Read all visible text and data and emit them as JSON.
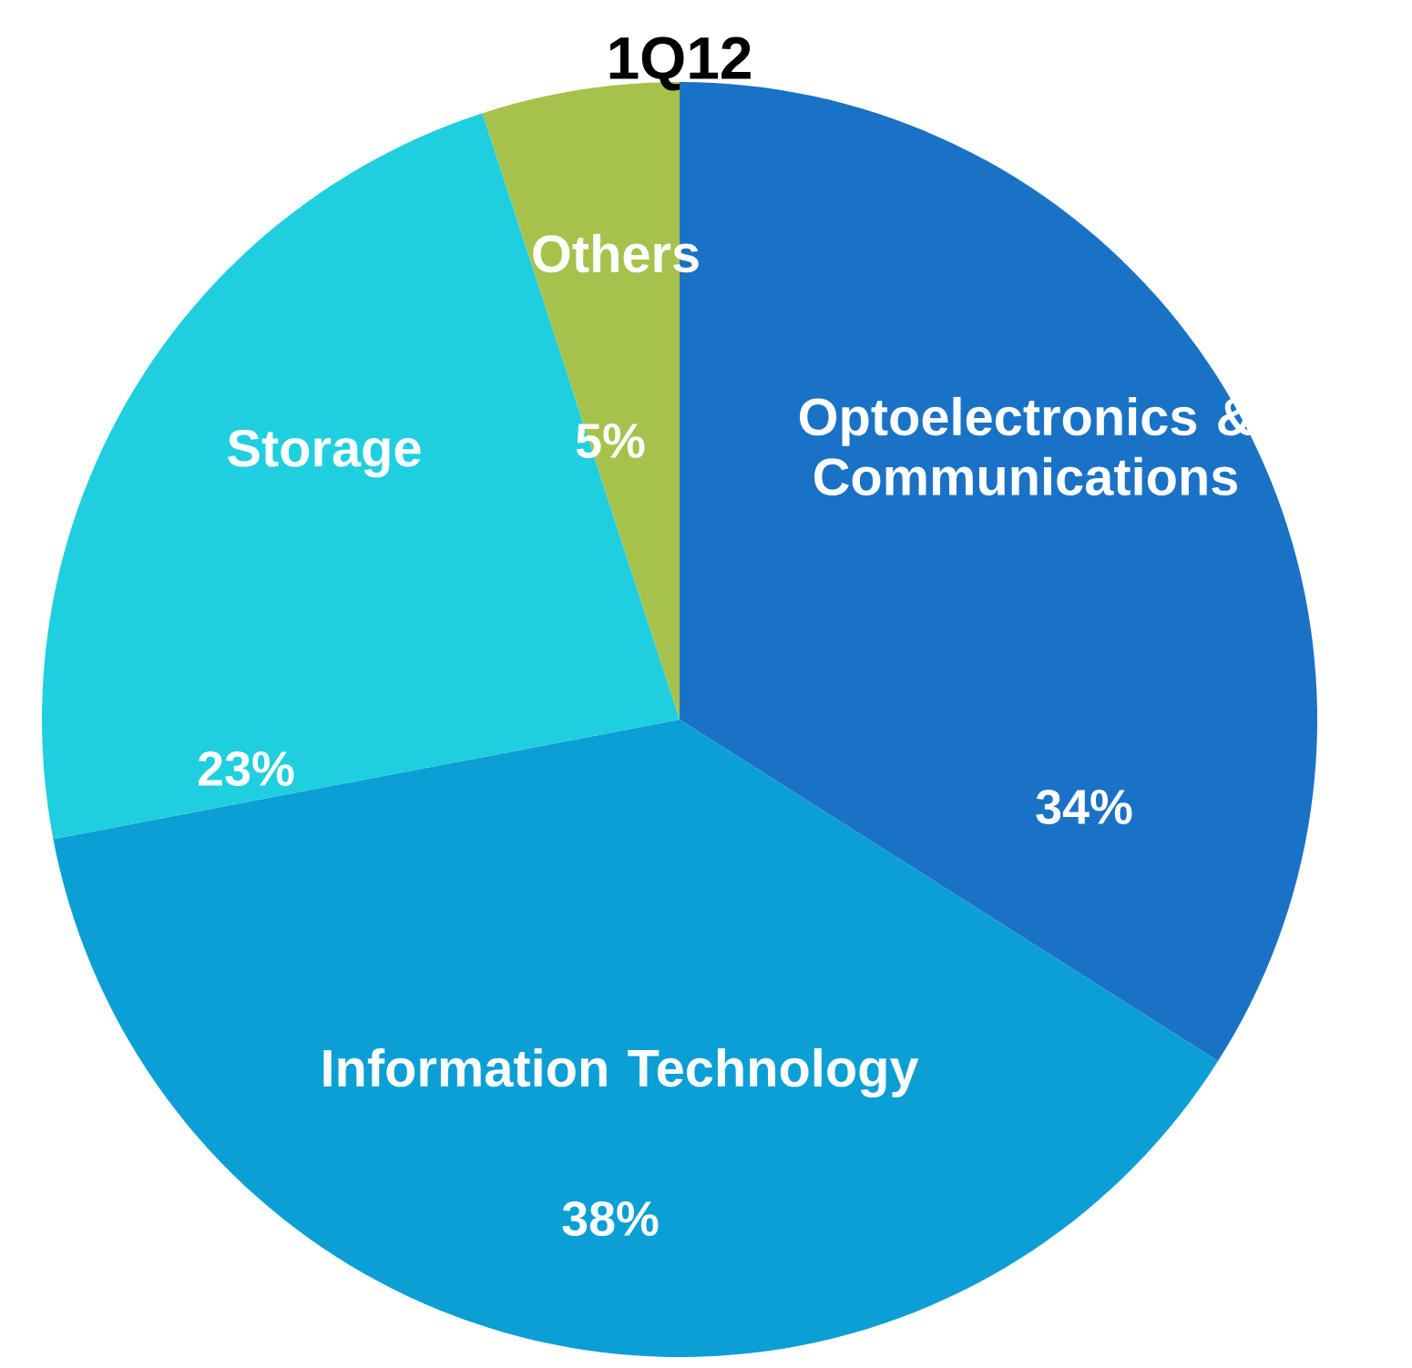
{
  "chart_data": {
    "type": "pie",
    "title": "1Q12",
    "categories": [
      "Optoelectronics & Communications",
      "Information Technology",
      "Storage",
      "Others"
    ],
    "values": [
      34,
      38,
      23,
      5
    ],
    "value_labels": [
      "34%",
      "38%",
      "23%",
      "5%"
    ],
    "colors": [
      "#1a72c6",
      "#0b9fd6",
      "#1fcfdf",
      "#a6c24c"
    ]
  }
}
